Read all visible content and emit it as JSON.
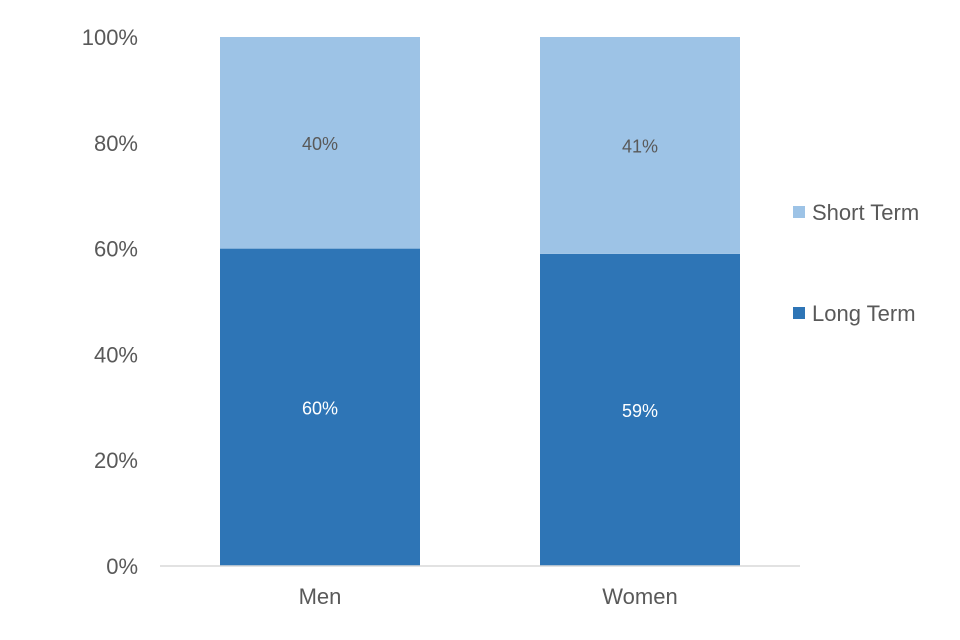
{
  "chart_data": {
    "type": "bar",
    "stacked": true,
    "categories": [
      "Men",
      "Women"
    ],
    "series": [
      {
        "name": "Long Term",
        "values": [
          60,
          59
        ],
        "labels": [
          "60%",
          "59%"
        ],
        "color": "#2E75B6",
        "label_color": "#ffffff"
      },
      {
        "name": "Short Term",
        "values": [
          40,
          41
        ],
        "labels": [
          "40%",
          "41%"
        ],
        "color": "#9DC3E6",
        "label_color": "#595959"
      }
    ],
    "ylim": [
      0,
      100
    ],
    "yticks": [
      "0%",
      "20%",
      "40%",
      "60%",
      "80%",
      "100%"
    ],
    "legend": {
      "position": "right",
      "order": [
        "Short Term",
        "Long Term"
      ]
    },
    "grid": false
  }
}
